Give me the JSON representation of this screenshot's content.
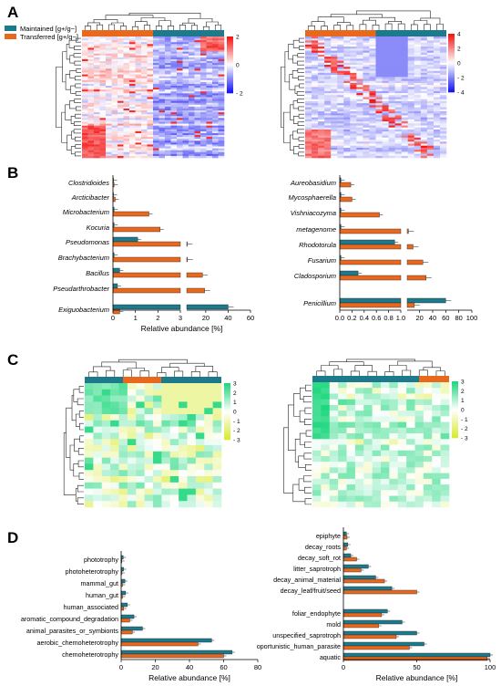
{
  "panel_labels": [
    "A",
    "B",
    "C",
    "D"
  ],
  "colors": {
    "maintained": "#1d7a8c",
    "transferred": "#e8691e"
  },
  "legend": {
    "maintained": "Maintained [g+/g−]",
    "transferred": "Transferred [g+/g−]"
  },
  "chart_data": [
    {
      "type": "heatmap",
      "panel": "A",
      "position": "left",
      "scale_ticks": [
        "2",
        "0",
        "- 2"
      ],
      "palette": "blue-white-red"
    },
    {
      "type": "heatmap",
      "panel": "A",
      "position": "right",
      "scale_ticks": [
        "4",
        "2",
        "0",
        "- 2",
        "- 4"
      ],
      "palette": "blue-white-red"
    },
    {
      "type": "bar",
      "panel": "B",
      "orientation": "horizontal",
      "xlabel": "Relative abundance [%]",
      "x_ticks_segment1": [
        "0",
        "1",
        "2",
        "3"
      ],
      "x_ticks_segment2": [
        "20",
        "40",
        "60"
      ],
      "categories": [
        "Clostridioides",
        "Arcticibacter",
        "Microbacterium",
        "Kocuria",
        "Pseudomonas",
        "Brachybacterium",
        "Bacillus",
        "Pseudarthrobacter",
        "Exiguobacterium"
      ],
      "series": [
        {
          "name": "Maintained [g+/g−]",
          "values": [
            0.02,
            0.02,
            0.05,
            0.05,
            1.1,
            0.05,
            0.3,
            0.2,
            40
          ]
        },
        {
          "name": "Transferred [g+/g−]",
          "values": [
            0.05,
            0.1,
            1.6,
            2.1,
            3.3,
            3.6,
            17,
            19,
            0.3
          ]
        }
      ]
    },
    {
      "type": "bar",
      "panel": "B",
      "orientation": "horizontal",
      "xlabel": "",
      "x_ticks_segment1": [
        "0.0",
        "0.2",
        "0.4",
        "0.6",
        "0.8",
        "1.0"
      ],
      "x_ticks_segment2": [
        "20",
        "40",
        "60",
        "80",
        "100"
      ],
      "categories": [
        "Aureobasidium",
        "Mycosphaerella",
        "Vishniacozyma",
        "metagenome",
        "Rhodotorula",
        "Fusarium",
        "Cladosporium",
        "Penicillium"
      ],
      "series": [
        {
          "name": "Maintained [g+/g−]",
          "values": [
            0.02,
            0.02,
            0.02,
            0.02,
            0.9,
            0.02,
            0.3,
            60
          ]
        },
        {
          "name": "Transferred [g+/g−]",
          "values": [
            0.18,
            0.2,
            0.65,
            3,
            10,
            25,
            30,
            12
          ]
        }
      ]
    },
    {
      "type": "heatmap",
      "panel": "C",
      "position": "left",
      "scale_ticks": [
        "3",
        "2",
        "1",
        "0",
        "- 1",
        "- 2",
        "- 3"
      ],
      "palette": "green-white-yellow"
    },
    {
      "type": "heatmap",
      "panel": "C",
      "position": "right",
      "scale_ticks": [
        "3",
        "2",
        "1",
        "0",
        "- 1",
        "- 2",
        "- 3"
      ],
      "palette": "green-white-yellow"
    },
    {
      "type": "bar",
      "panel": "D",
      "orientation": "horizontal",
      "xlabel": "Relative abundance [%]",
      "x_ticks": [
        "0",
        "20",
        "40",
        "60",
        "80"
      ],
      "xlim": [
        0,
        80
      ],
      "categories": [
        "phototrophy",
        "photoheterotrophy",
        "mammal_gut",
        "human_gut",
        "human_associated",
        "aromatic_compound_degradation",
        "animal_parasites_or_symbionts",
        "aerobic_chemoheterotrophy",
        "chemoheterotrophy"
      ],
      "series": [
        {
          "name": "Maintained [g+/g−]",
          "values": [
            1.2,
            1.4,
            2.2,
            2.6,
            3.6,
            7.5,
            12.5,
            53,
            65
          ]
        },
        {
          "name": "Transferred [g+/g−]",
          "values": [
            0.4,
            0.5,
            0.8,
            0.8,
            1.5,
            5,
            6.5,
            45,
            60
          ]
        }
      ]
    },
    {
      "type": "bar",
      "panel": "D",
      "orientation": "horizontal",
      "xlabel": "Relative abundance [%]",
      "x_ticks": [
        "0",
        "50",
        "100"
      ],
      "xlim": [
        0,
        100
      ],
      "categories": [
        "epiphyte",
        "decay_roots",
        "decay_soft_rot",
        "litter_saprotroph",
        "decay_animal_material",
        "decay_leaf/fruit/seed",
        "foliar_endophyte",
        "mold",
        "unspecified_saprotroph",
        "oportunistic_human_parasite",
        "aquatic"
      ],
      "series": [
        {
          "name": "Maintained [g+/g−]",
          "values": [
            2,
            3,
            5,
            17,
            22,
            33,
            30,
            40,
            50,
            55,
            100
          ]
        },
        {
          "name": "Transferred [g+/g−]",
          "values": [
            2.5,
            2,
            9,
            12,
            28,
            50,
            26,
            24,
            36,
            45,
            98
          ]
        }
      ]
    }
  ]
}
